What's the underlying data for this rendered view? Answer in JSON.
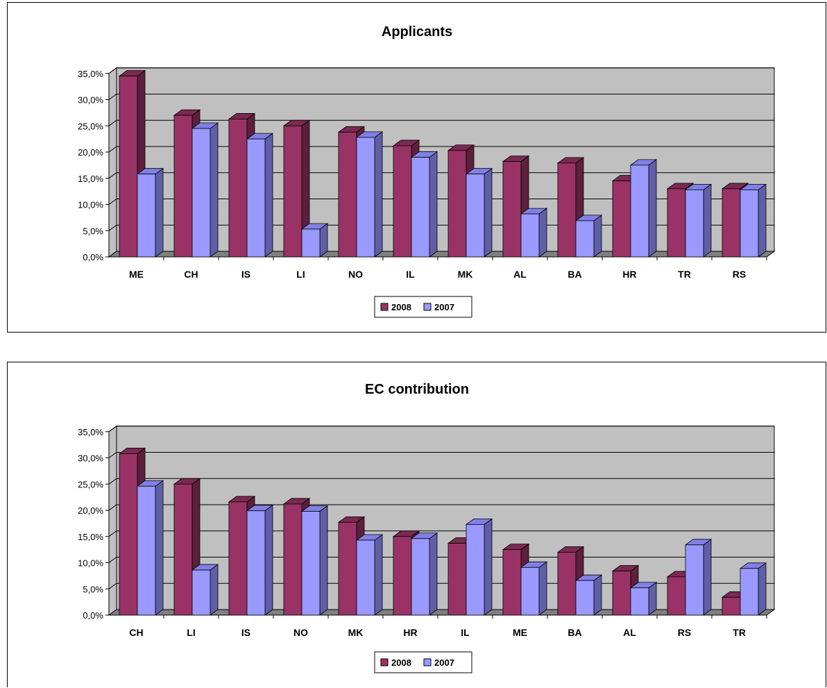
{
  "colors": {
    "series_2008": "#993366",
    "series_2008_top": "#7a2a52",
    "series_2008_side": "#5c1f3d",
    "series_2007": "#9999ff",
    "series_2007_top": "#8080e6",
    "series_2007_side": "#5f5fa8",
    "wall": "#c0c0c0",
    "floor": "#808080"
  },
  "chart_data": [
    {
      "type": "bar",
      "title": "Applicants",
      "categories": [
        "ME",
        "CH",
        "IS",
        "LI",
        "NO",
        "IL",
        "MK",
        "AL",
        "BA",
        "HR",
        "TR",
        "RS"
      ],
      "series": [
        {
          "name": "2008",
          "values": [
            34.5,
            27.0,
            26.3,
            25.0,
            23.8,
            21.2,
            20.3,
            18.2,
            17.9,
            14.5,
            13.0,
            13.0
          ]
        },
        {
          "name": "2007",
          "values": [
            15.8,
            24.5,
            22.5,
            5.3,
            22.8,
            19.0,
            15.8,
            8.2,
            6.9,
            17.5,
            12.8,
            12.8
          ]
        }
      ],
      "yticks": [
        "0,0%",
        "5,0%",
        "10,0%",
        "15,0%",
        "20,0%",
        "25,0%",
        "30,0%",
        "35,0%"
      ],
      "ylim": [
        0,
        35
      ],
      "legend": "bottom"
    },
    {
      "type": "bar",
      "title": "EC contribution",
      "categories": [
        "CH",
        "LI",
        "IS",
        "NO",
        "MK",
        "HR",
        "IL",
        "ME",
        "BA",
        "AL",
        "RS",
        "TR"
      ],
      "series": [
        {
          "name": "2008",
          "values": [
            30.8,
            25.0,
            21.6,
            21.2,
            17.7,
            15.0,
            13.7,
            12.5,
            12.0,
            8.4,
            7.3,
            3.4
          ]
        },
        {
          "name": "2007",
          "values": [
            24.6,
            8.6,
            19.9,
            19.8,
            14.3,
            14.6,
            17.3,
            9.1,
            6.6,
            5.2,
            13.4,
            8.9
          ]
        }
      ],
      "yticks": [
        "0,0%",
        "5,0%",
        "10,0%",
        "15,0%",
        "20,0%",
        "25,0%",
        "30,0%",
        "35,0%"
      ],
      "ylim": [
        0,
        35
      ],
      "legend": "bottom"
    }
  ]
}
